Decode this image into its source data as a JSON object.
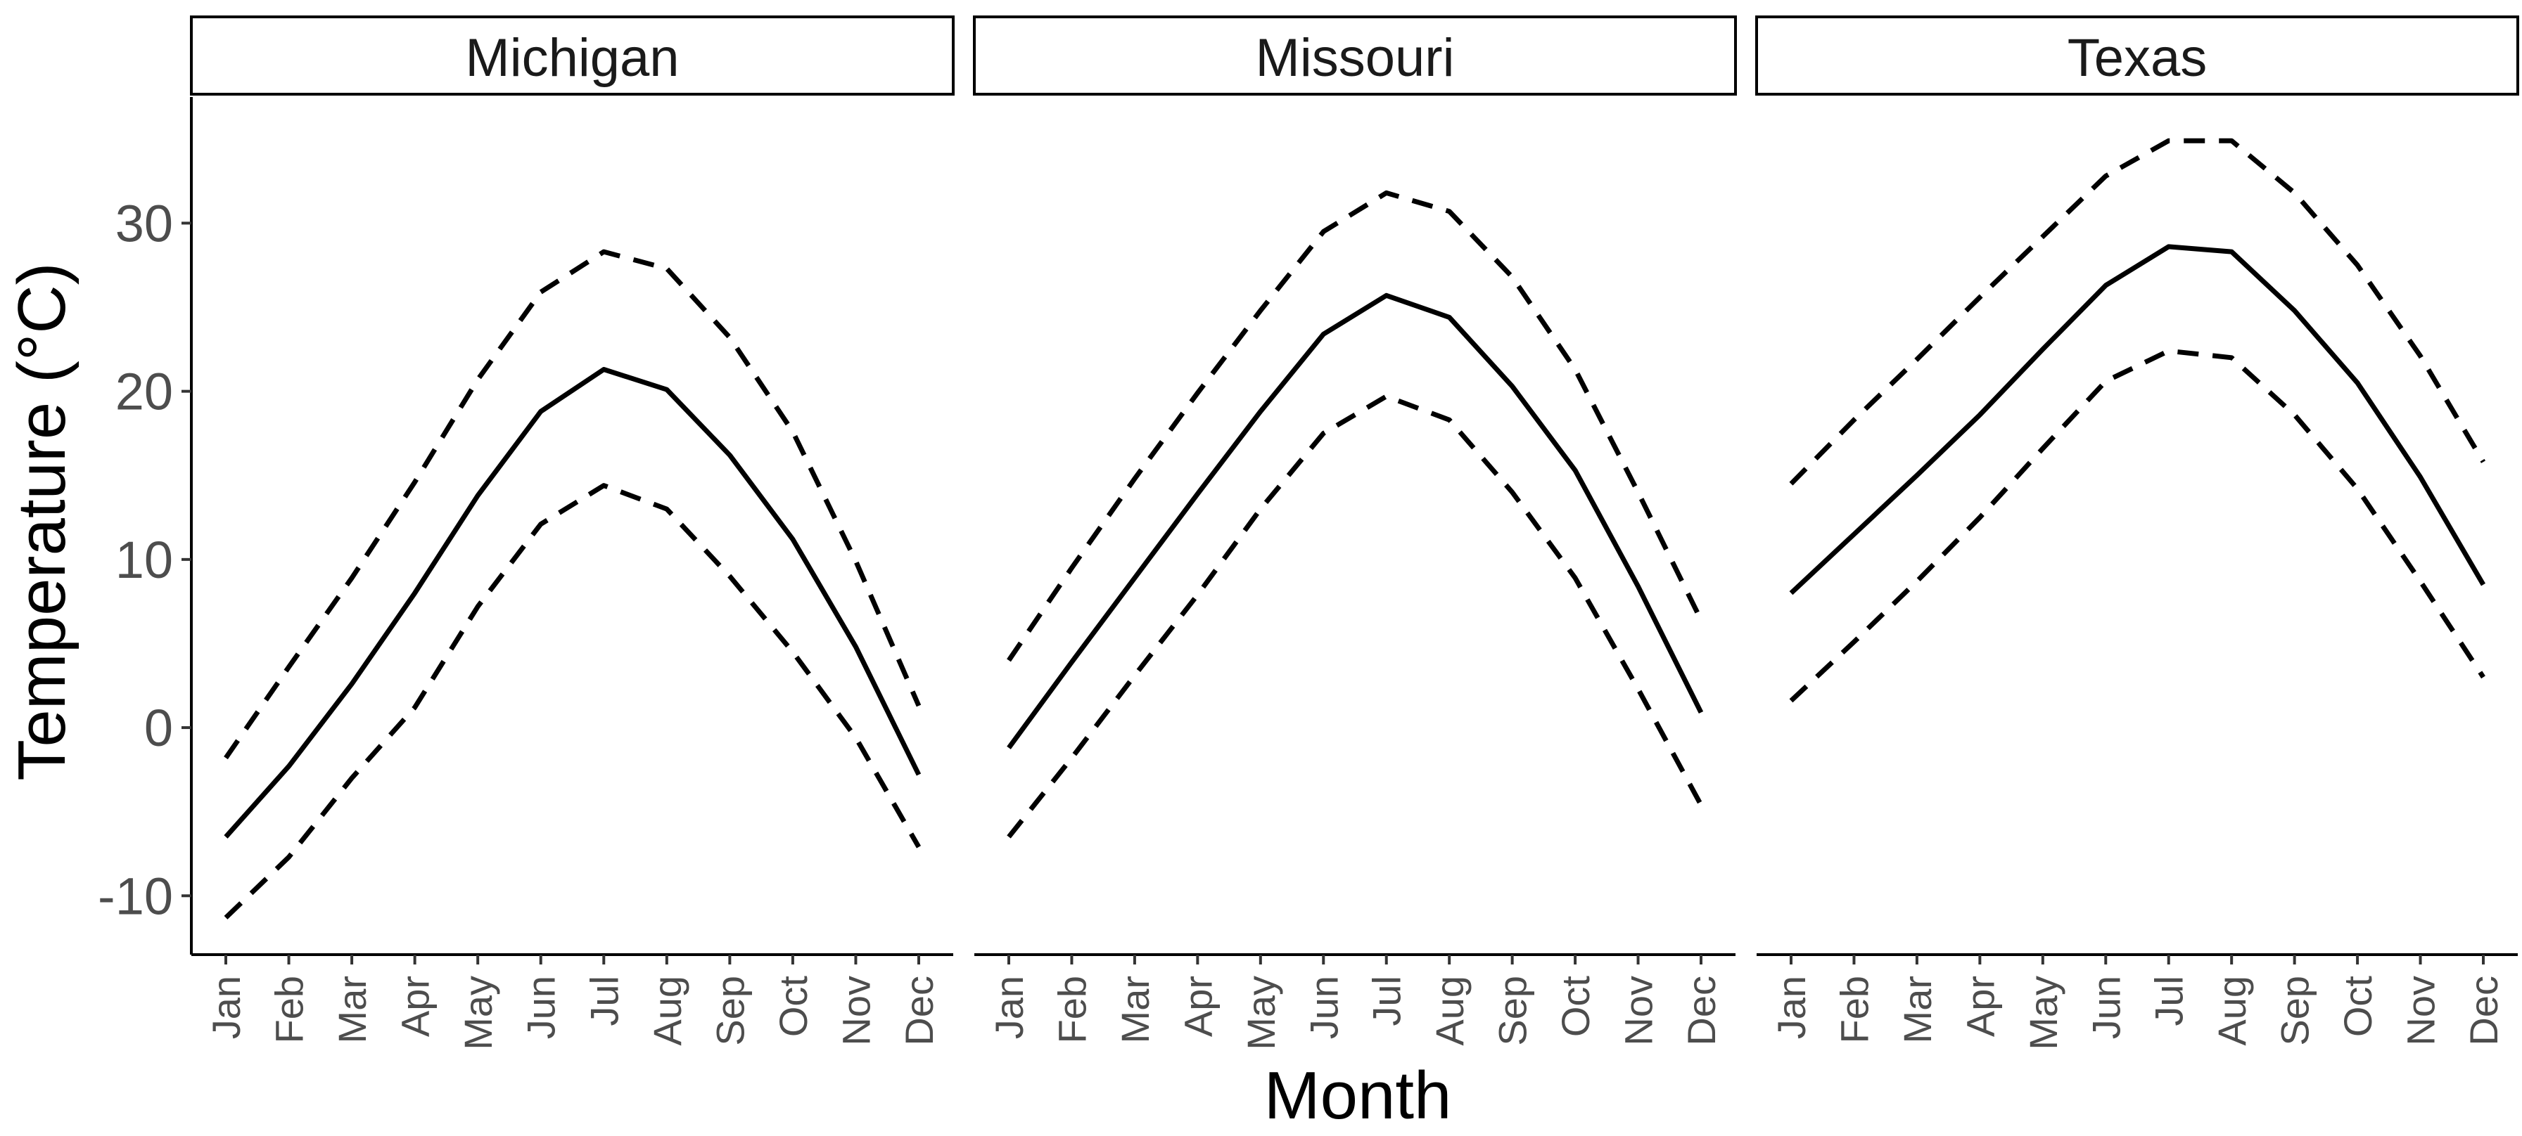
{
  "chart_data": {
    "type": "line",
    "facet_by": "State",
    "xlabel": "Month",
    "ylabel": "Temperature (°C)",
    "x": [
      "Jan",
      "Feb",
      "Mar",
      "Apr",
      "May",
      "Jun",
      "Jul",
      "Aug",
      "Sep",
      "Oct",
      "Nov",
      "Dec"
    ],
    "yticks": [
      -10,
      0,
      10,
      20,
      30
    ],
    "ylim": [
      -13.5,
      37.5
    ],
    "grid": false,
    "line_styles": {
      "mean": "solid",
      "upper": "dashed",
      "lower": "dashed"
    },
    "color": "#000000",
    "panels": [
      {
        "title": "Michigan",
        "series": [
          {
            "values": [
              -6.5,
              -2.3,
              2.6,
              8.0,
              13.8,
              18.8,
              21.3,
              20.1,
              16.2,
              11.2,
              4.8,
              -2.8
            ]
          },
          {
            "values": [
              -1.8,
              3.6,
              8.9,
              14.6,
              20.7,
              25.9,
              28.3,
              27.3,
              23.2,
              17.6,
              9.9,
              1.3
            ]
          },
          {
            "values": [
              -11.3,
              -7.7,
              -3.0,
              1.2,
              7.2,
              12.1,
              14.4,
              13.0,
              9.0,
              4.5,
              -0.6,
              -7.1
            ]
          }
        ]
      },
      {
        "title": "Missouri",
        "series": [
          {
            "values": [
              -1.2,
              3.9,
              8.9,
              13.9,
              18.8,
              23.4,
              25.7,
              24.4,
              20.3,
              15.3,
              8.4,
              0.9
            ]
          },
          {
            "values": [
              4.0,
              9.5,
              14.8,
              19.9,
              24.8,
              29.5,
              31.8,
              30.7,
              26.8,
              21.3,
              14.0,
              6.4
            ]
          },
          {
            "values": [
              -6.5,
              -1.8,
              3.1,
              7.9,
              13.0,
              17.5,
              19.7,
              18.3,
              14.0,
              8.9,
              2.3,
              -4.6
            ]
          }
        ]
      },
      {
        "title": "Texas",
        "series": [
          {
            "values": [
              8.0,
              11.5,
              15.0,
              18.6,
              22.5,
              26.3,
              28.6,
              28.3,
              24.8,
              20.5,
              14.9,
              8.5
            ]
          },
          {
            "values": [
              14.5,
              18.3,
              21.9,
              25.6,
              29.2,
              32.8,
              34.9,
              34.9,
              31.8,
              27.5,
              22.1,
              15.8
            ]
          },
          {
            "values": [
              1.6,
              5.1,
              8.7,
              12.5,
              16.6,
              20.6,
              22.4,
              22.0,
              18.6,
              14.2,
              8.7,
              3.0
            ]
          }
        ]
      }
    ]
  }
}
